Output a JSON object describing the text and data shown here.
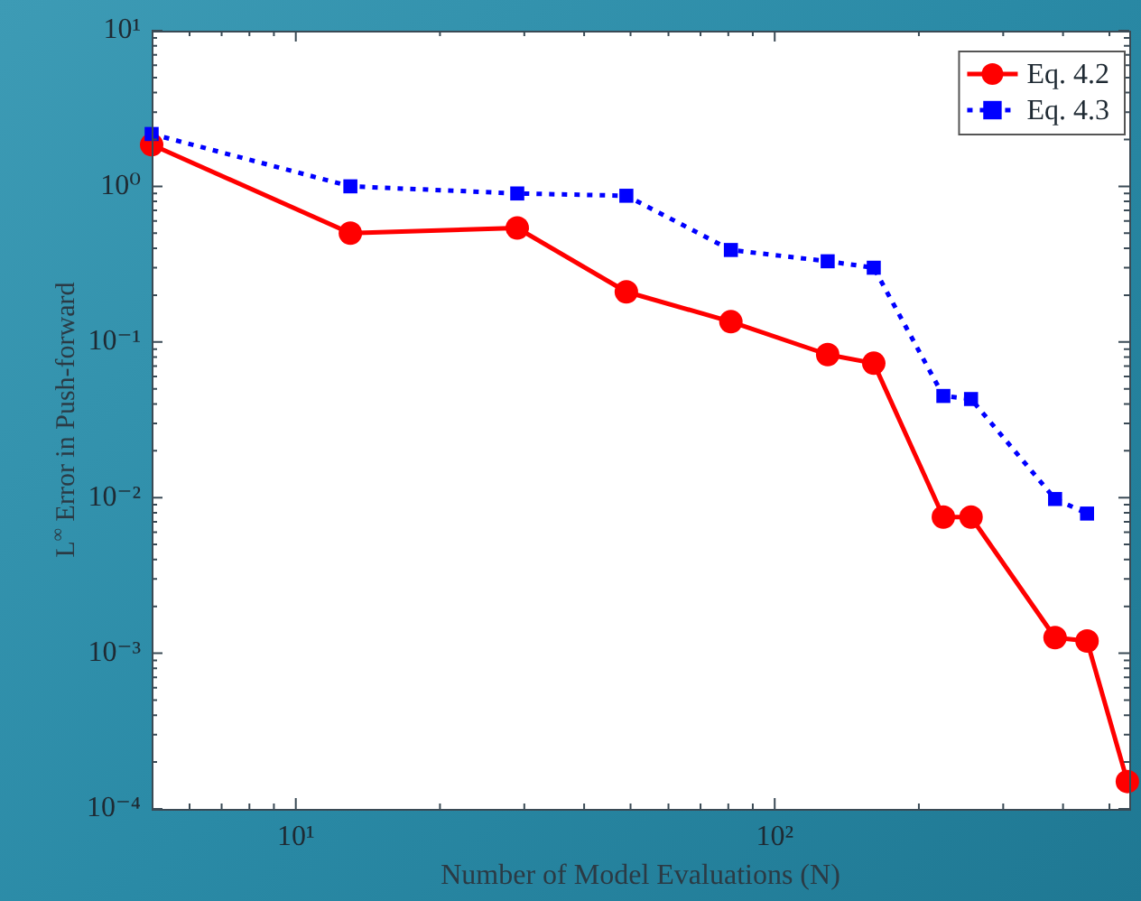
{
  "chart_data": {
    "type": "line",
    "xlabel": "Number of Model Evaluations (N)",
    "ylabel": "L$^{∞}$ Error in Push-forward",
    "log": "xy",
    "grid": false,
    "legend": "top right",
    "xlim": [
      5,
      550
    ],
    "ylim": [
      0.0001,
      10
    ],
    "xticks": [
      {
        "value": 6,
        "label": null
      },
      {
        "value": 7,
        "label": null
      },
      {
        "value": 8,
        "label": null
      },
      {
        "value": 9,
        "label": null
      },
      {
        "value": 10,
        "label": "10¹"
      },
      {
        "value": 20,
        "label": null
      },
      {
        "value": 30,
        "label": null
      },
      {
        "value": 40,
        "label": null
      },
      {
        "value": 50,
        "label": null
      },
      {
        "value": 60,
        "label": null
      },
      {
        "value": 70,
        "label": null
      },
      {
        "value": 80,
        "label": null
      },
      {
        "value": 90,
        "label": null
      },
      {
        "value": 100,
        "label": "10²"
      },
      {
        "value": 200,
        "label": null
      },
      {
        "value": 300,
        "label": null
      },
      {
        "value": 400,
        "label": null
      },
      {
        "value": 500,
        "label": null
      }
    ],
    "yticks": [
      {
        "value": 0.0001,
        "label": "10⁻⁴"
      },
      {
        "value": 0.0002,
        "label": null
      },
      {
        "value": 0.0003,
        "label": null
      },
      {
        "value": 0.0004,
        "label": null
      },
      {
        "value": 0.0005,
        "label": null
      },
      {
        "value": 0.0006,
        "label": null
      },
      {
        "value": 0.0007,
        "label": null
      },
      {
        "value": 0.0008,
        "label": null
      },
      {
        "value": 0.0009,
        "label": null
      },
      {
        "value": 0.001,
        "label": "10⁻³"
      },
      {
        "value": 0.002,
        "label": null
      },
      {
        "value": 0.003,
        "label": null
      },
      {
        "value": 0.004,
        "label": null
      },
      {
        "value": 0.005,
        "label": null
      },
      {
        "value": 0.006,
        "label": null
      },
      {
        "value": 0.007,
        "label": null
      },
      {
        "value": 0.008,
        "label": null
      },
      {
        "value": 0.009,
        "label": null
      },
      {
        "value": 0.01,
        "label": "10⁻²"
      },
      {
        "value": 0.02,
        "label": null
      },
      {
        "value": 0.03,
        "label": null
      },
      {
        "value": 0.04,
        "label": null
      },
      {
        "value": 0.05,
        "label": null
      },
      {
        "value": 0.06,
        "label": null
      },
      {
        "value": 0.07,
        "label": null
      },
      {
        "value": 0.08,
        "label": null
      },
      {
        "value": 0.09,
        "label": null
      },
      {
        "value": 0.1,
        "label": "10⁻¹"
      },
      {
        "value": 0.2,
        "label": null
      },
      {
        "value": 0.3,
        "label": null
      },
      {
        "value": 0.4,
        "label": null
      },
      {
        "value": 0.5,
        "label": null
      },
      {
        "value": 0.6,
        "label": null
      },
      {
        "value": 0.7,
        "label": null
      },
      {
        "value": 0.8,
        "label": null
      },
      {
        "value": 0.9,
        "label": null
      },
      {
        "value": 1,
        "label": "10⁰"
      },
      {
        "value": 2,
        "label": null
      },
      {
        "value": 3,
        "label": null
      },
      {
        "value": 4,
        "label": null
      },
      {
        "value": 5,
        "label": null
      },
      {
        "value": 6,
        "label": null
      },
      {
        "value": 7,
        "label": null
      },
      {
        "value": 8,
        "label": null
      },
      {
        "value": 9,
        "label": null
      },
      {
        "value": 10,
        "label": "10¹"
      }
    ],
    "series": [
      {
        "name": "Eq. 4.2",
        "color": "#ff0000",
        "marker": "circle",
        "line_style": "solid",
        "x": [
          5,
          13,
          29,
          49,
          81,
          129,
          161,
          225,
          257,
          385,
          449,
          545
        ],
        "values": [
          1.85,
          0.5,
          0.54,
          0.21,
          0.135,
          0.083,
          0.073,
          0.0075,
          0.0075,
          0.00126,
          0.0012,
          0.00015
        ]
      },
      {
        "name": "Eq. 4.3",
        "color": "#0000ff",
        "marker": "square",
        "line_style": "dotted",
        "x": [
          5,
          13,
          29,
          49,
          81,
          129,
          161,
          225,
          257,
          385,
          449
        ],
        "values": [
          2.17,
          1.0,
          0.9,
          0.87,
          0.39,
          0.33,
          0.3,
          0.045,
          0.043,
          0.0098,
          0.0079
        ]
      }
    ]
  }
}
